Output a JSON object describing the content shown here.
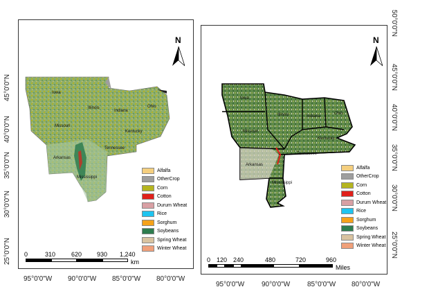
{
  "left_map": {
    "lat_ticks": [
      "45°0'0\"N",
      "40°0'0\"N",
      "35°0'0\"N",
      "30°0'0\"N",
      "25°0'0\"N"
    ],
    "lon_ticks": [
      "95°0'0\"W",
      "90°0'0\"W",
      "85°0'0\"W",
      "80°0'0\"W"
    ],
    "states": [
      "Iowa",
      "Illinois",
      "Indiana",
      "Ohio",
      "Missouri",
      "Kentucky",
      "Tennessee",
      "Arkansas",
      "Mississippi"
    ],
    "north": "N",
    "scale": {
      "ticks": [
        "0",
        "310",
        "620",
        "930",
        "1,240"
      ],
      "unit": "km"
    }
  },
  "right_map": {
    "lat_ticks": [
      "50°0'0\"N",
      "45°0'0\"N",
      "40°0'0\"N",
      "35°0'0\"N",
      "30°0'0\"N",
      "25°0'0\"N"
    ],
    "lon_ticks": [
      "95°0'0\"W",
      "90°0'0\"W",
      "85°0'0\"W",
      "80°0'0\"W"
    ],
    "states": [
      "Iowa",
      "Illinois",
      "Indiana",
      "Ohio",
      "Missouri",
      "Kentucky",
      "Tennessee",
      "Arkansas",
      "Mississippi"
    ],
    "north": "N",
    "scale": {
      "ticks": [
        "0",
        "120",
        "240",
        "480",
        "720",
        "960"
      ],
      "unit": "Miles"
    }
  },
  "legend": [
    {
      "label": "Alfalfa",
      "color": "#f5cf7f"
    },
    {
      "label": "OtherCrop",
      "color": "#9e9e9e"
    },
    {
      "label": "Corn",
      "color": "#b5b51f"
    },
    {
      "label": "Cotton",
      "color": "#e0201b"
    },
    {
      "label": "Durum Wheat",
      "color": "#d9a0a4"
    },
    {
      "label": "Rice",
      "color": "#1fc4f0"
    },
    {
      "label": "Sorghum",
      "color": "#f5a21a"
    },
    {
      "label": "Soybeans",
      "color": "#2e7d4f"
    },
    {
      "label": "Spring Wheat",
      "color": "#d9c3a0"
    },
    {
      "label": "Winter Wheat",
      "color": "#f0a07a"
    }
  ]
}
